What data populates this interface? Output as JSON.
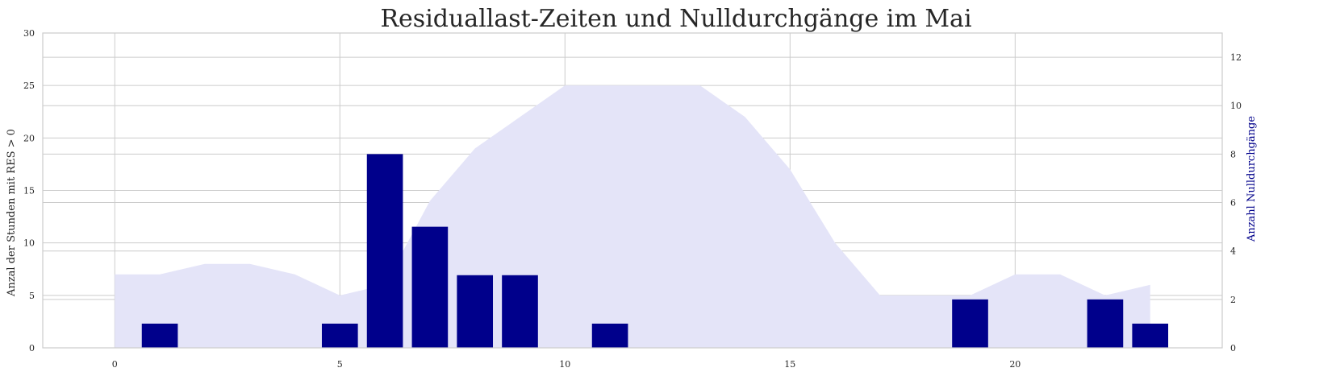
{
  "chart_data": {
    "type": "bar",
    "title": "Residuallast-Zeiten und Nulldurchgänge im Mai",
    "xlabel": "",
    "ylabel": "Anzal der Stunden mit RES > 0",
    "ylabel_right": "Anzahl Nulldurchgänge",
    "xlim": [
      -1.6,
      24.6
    ],
    "ylim": [
      0,
      30
    ],
    "ylim_right": [
      0,
      13
    ],
    "x_ticks": [
      "0",
      "5",
      "10",
      "15",
      "20"
    ],
    "x_tick_values": [
      0,
      5,
      10,
      15,
      20
    ],
    "y_ticks": [
      "0",
      "5",
      "10",
      "15",
      "20",
      "25",
      "30"
    ],
    "y_tick_values": [
      0,
      5,
      10,
      15,
      20,
      25,
      30
    ],
    "y_right_ticks": [
      "0",
      "2",
      "4",
      "6",
      "8",
      "10",
      "12"
    ],
    "y_right_tick_values": [
      0,
      2,
      4,
      6,
      8,
      10,
      12
    ],
    "grid": true,
    "series": [
      {
        "kind": "area",
        "axis": "left",
        "color": "#e4e4f8",
        "x": [
          0,
          1,
          2,
          3,
          4,
          5,
          6,
          7,
          8,
          9,
          10,
          11,
          12,
          13,
          14,
          15,
          16,
          17,
          18,
          19,
          20,
          21,
          22,
          23
        ],
        "values": [
          7,
          7,
          8,
          8,
          7,
          5,
          6,
          14,
          19,
          22,
          25,
          25,
          25,
          25,
          22,
          17,
          10,
          5,
          5,
          5,
          7,
          7,
          5,
          6
        ]
      },
      {
        "kind": "bar",
        "axis": "right",
        "color": "#00008b",
        "x": [
          0,
          1,
          2,
          3,
          4,
          5,
          6,
          7,
          8,
          9,
          10,
          11,
          12,
          13,
          14,
          15,
          16,
          17,
          18,
          19,
          20,
          21,
          22,
          23
        ],
        "values": [
          0,
          1,
          0,
          0,
          0,
          1,
          8,
          5,
          3,
          3,
          0,
          1,
          0,
          0,
          0,
          0,
          0,
          0,
          0,
          2,
          0,
          0,
          2,
          1
        ]
      }
    ]
  }
}
